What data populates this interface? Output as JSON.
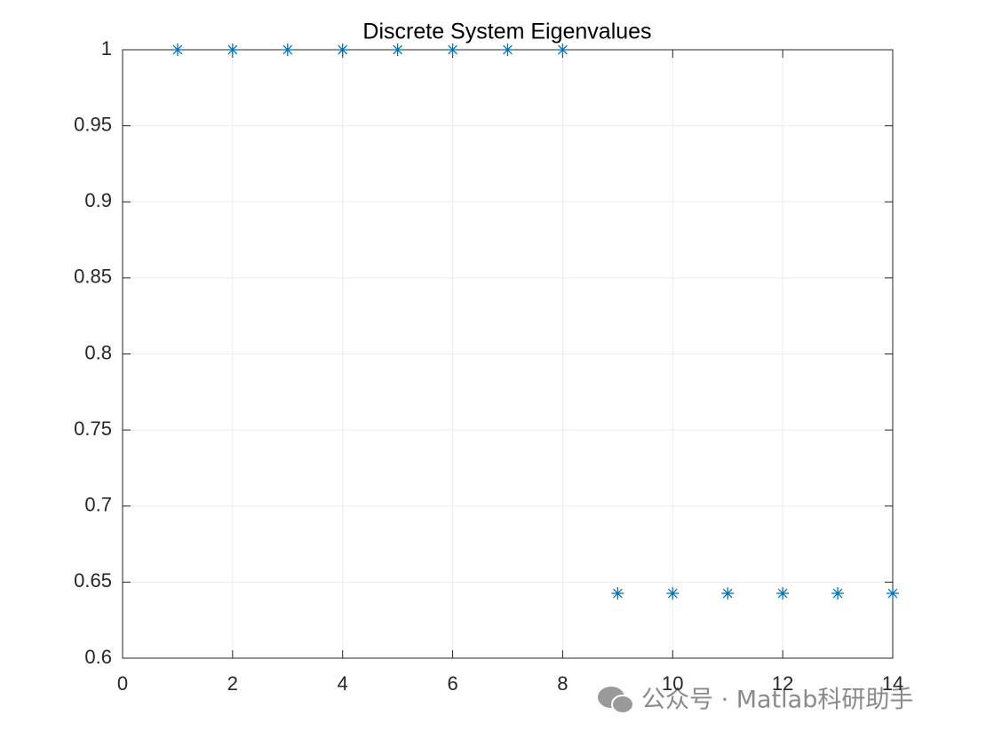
{
  "chart_data": {
    "type": "scatter",
    "title": "Discrete System Eigenvalues",
    "series": [
      {
        "color": "#0072BD",
        "marker": "asterisk",
        "x": [
          1,
          2,
          3,
          4,
          5,
          6,
          7,
          8,
          9,
          10,
          11,
          12,
          13,
          14
        ],
        "values": [
          1,
          1,
          1,
          1,
          1,
          1,
          1,
          1,
          0.6426,
          0.6426,
          0.6426,
          0.6426,
          0.6426,
          0.6426
        ]
      }
    ],
    "xlim": [
      0,
      14
    ],
    "xticks": [
      0,
      2,
      4,
      6,
      8,
      10,
      12,
      14
    ],
    "ylim": [
      0.6,
      1
    ],
    "yticks": [
      0.6,
      0.65,
      0.7,
      0.75,
      0.8,
      0.85,
      0.9,
      0.95,
      1
    ],
    "grid": true
  },
  "watermark": "公众号 · Matlab科研助手"
}
